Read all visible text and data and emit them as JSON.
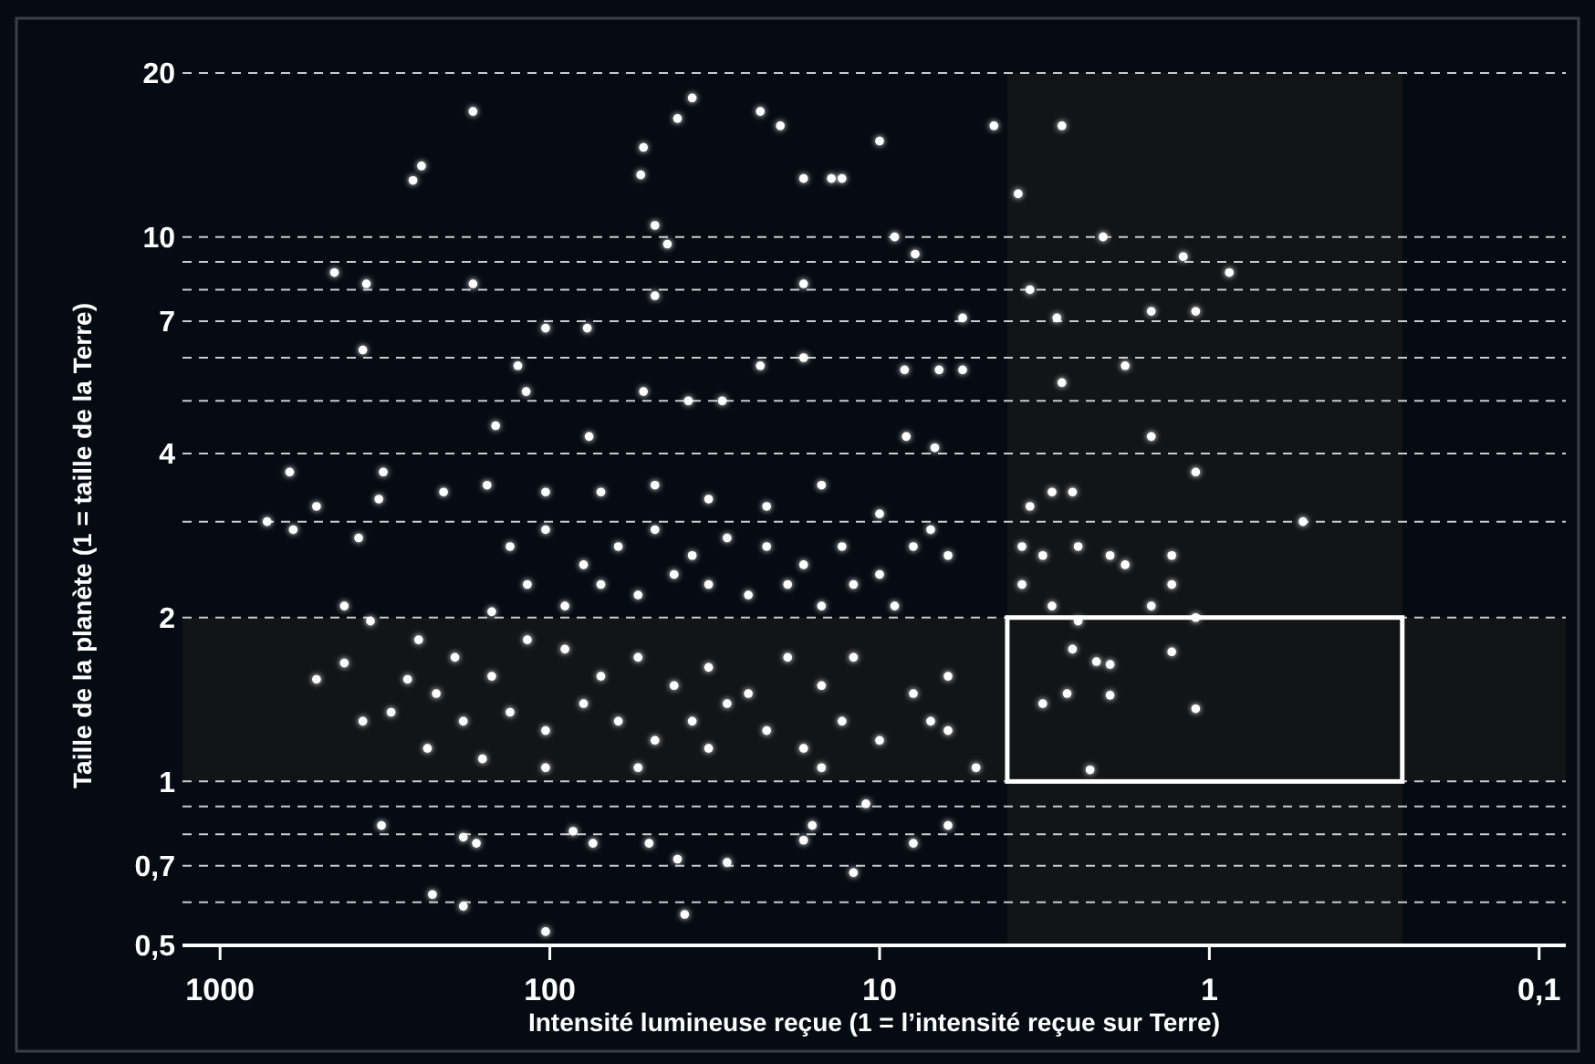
{
  "chart_data": {
    "type": "scatter",
    "xlabel": "Intensité lumineuse reçue (1 = l’intensité reçue sur Terre)",
    "ylabel": "Taille de la planète (1 = taille de la Terre)",
    "log": "xy",
    "grid": "y",
    "marker": "circle",
    "xlim": [
      1300,
      0.083
    ],
    "xticks": [
      1000,
      100,
      10,
      {
        "value": 1,
        "label": "1"
      },
      {
        "value": 0.1,
        "label": "0,1"
      }
    ],
    "ylim": [
      0.5,
      20
    ],
    "yticks": [
      {
        "value": 0.5,
        "label": "0,5"
      },
      {
        "value": 0.6,
        "label": null
      },
      {
        "value": 0.7,
        "label": "0,7"
      },
      {
        "value": 0.8,
        "label": null
      },
      {
        "value": 0.9,
        "label": null
      },
      1,
      2,
      {
        "value": 3,
        "label": null
      },
      4,
      {
        "value": 5,
        "label": null
      },
      {
        "value": 6,
        "label": null
      },
      7,
      {
        "value": 8,
        "label": null
      },
      {
        "value": 9,
        "label": null
      },
      10,
      20
    ],
    "bands": [
      {
        "axis": "y",
        "from": 1,
        "to": 2,
        "color": "#131416"
      },
      {
        "axis": "x",
        "from": 4.1,
        "to": 0.26,
        "color": "#131416"
      }
    ],
    "series": [
      {
        "color": "#ffffff",
        "x": [
          171,
          245,
          260,
          37,
          41,
          52,
          53,
          23,
          20,
          17,
          14,
          13,
          10,
          4.5,
          2.8,
          3.8,
          48,
          44,
          48,
          171,
          450,
          360,
          9,
          7.8,
          2.1,
          1.2,
          0.87,
          3.5,
          2.9,
          1.5,
          1.1,
          17,
          5.6,
          369,
          103,
          77,
          125,
          118,
          146,
          52,
          38,
          30,
          23,
          17,
          8.4,
          6.6,
          5.6,
          2.8,
          1.8,
          1.5,
          1.1,
          0.52,
          8.3,
          6.8,
          76,
          615,
          720,
          600,
          510,
          320,
          330,
          380,
          210,
          155,
          420,
          350,
          132,
          103,
          79,
          62,
          48,
          37,
          29,
          22,
          17,
          13,
          10,
          7.9,
          6.2,
          117,
          90,
          70,
          54,
          42,
          33,
          25,
          19,
          15,
          12,
          9,
          150,
          103,
          70,
          48,
          33,
          22,
          15,
          10,
          7,
          3.5,
          3.0,
          2.6,
          3.7,
          3.2,
          2.5,
          2.0,
          1.8,
          1.3,
          1.3,
          3.7,
          3.0,
          1.5,
          1.1,
          250,
          194,
          221,
          183,
          150,
          117,
          90,
          70,
          54,
          42,
          33,
          25,
          19,
          15,
          12,
          7.9,
          6.2,
          132,
          103,
          79,
          62,
          48,
          37,
          29,
          22,
          17,
          13,
          10,
          6.2,
          5.1,
          235,
          160,
          103,
          54,
          33,
          15,
          7,
          303,
          270,
          369,
          510,
          420,
          2.5,
          2.6,
          2.2,
          3.2,
          2.7,
          2.0,
          2.0,
          1.3,
          1.1,
          2.3,
          324,
          183,
          167,
          85,
          74,
          50,
          41,
          29,
          17,
          16,
          11,
          7.9,
          6.2,
          12,
          227,
          183,
          103,
          39
        ],
        "values": [
          17,
          13.5,
          12.7,
          18,
          16.5,
          14.6,
          13,
          17,
          16,
          12.8,
          12.8,
          12.8,
          15,
          16,
          16,
          12,
          10.5,
          9.7,
          7.8,
          8.2,
          8.6,
          8.2,
          10,
          9.3,
          10,
          9.2,
          8.6,
          8,
          7.1,
          7.3,
          7.3,
          8.2,
          7.1,
          6.2,
          6.8,
          6.8,
          5.8,
          5.2,
          4.5,
          5.2,
          5,
          5,
          5.8,
          6,
          5.7,
          5.7,
          5.7,
          5.4,
          5.8,
          4.3,
          3.7,
          3,
          4.3,
          4.1,
          4.3,
          3.7,
          3,
          2.9,
          3.2,
          3.7,
          3.3,
          2.8,
          3.4,
          3.5,
          2.1,
          1.97,
          2.7,
          2.9,
          2.5,
          2.7,
          2.9,
          2.6,
          2.8,
          2.7,
          2.5,
          2.7,
          2.4,
          2.7,
          2.6,
          2.3,
          2.1,
          2.3,
          2.2,
          2.4,
          2.3,
          2.2,
          2.3,
          2.1,
          2.3,
          2.1,
          2.05,
          3.4,
          3.4,
          3.5,
          3.3,
          3.2,
          3.5,
          3.1,
          2.9,
          3.2,
          3.4,
          3.4,
          2.7,
          2.6,
          2.7,
          2.6,
          2.5,
          2.6,
          2.3,
          2.3,
          2.1,
          2.1,
          2,
          1.82,
          1.69,
          1.45,
          1.29,
          1.56,
          1.82,
          1.75,
          1.56,
          1.69,
          1.5,
          1.62,
          1.45,
          1.69,
          1.5,
          1.69,
          1.45,
          1.56,
          1.34,
          1.24,
          1.39,
          1.29,
          1.19,
          1.29,
          1.39,
          1.24,
          1.15,
          1.29,
          1.19,
          1.24,
          1.06,
          1.15,
          1.1,
          1.06,
          1.06,
          1.15,
          1.06,
          1.29,
          1.34,
          1.54,
          1.29,
          1.54,
          1.65,
          1.97,
          1.75,
          1.66,
          1.39,
          1.45,
          1.64,
          1.44,
          1.73,
          1.36,
          1.05,
          0.83,
          0.79,
          0.77,
          0.81,
          0.77,
          0.77,
          0.72,
          0.71,
          0.78,
          0.83,
          0.91,
          0.77,
          0.83,
          0.68,
          0.62,
          0.59,
          0.53,
          0.57
        ]
      }
    ]
  }
}
